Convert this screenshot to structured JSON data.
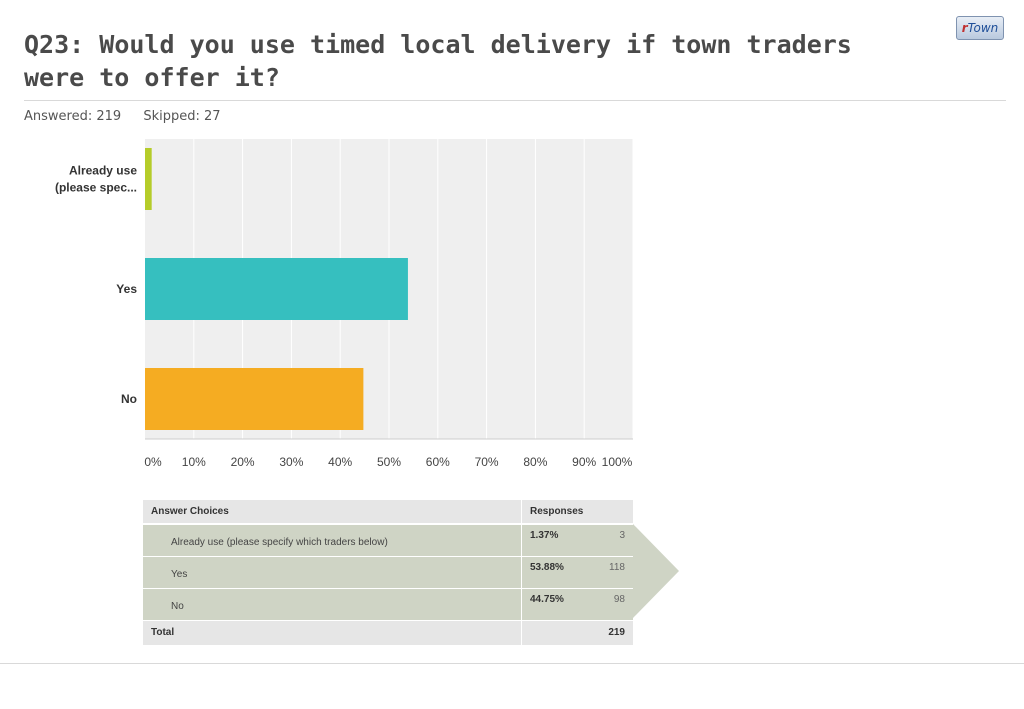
{
  "question": {
    "number": "Q23:",
    "text": "Would you use timed local delivery if town traders were to offer it?",
    "answered": "Answered: 219",
    "skipped": "Skipped: 27"
  },
  "logo": {
    "r": "r",
    "rest": "Town"
  },
  "chart_data": {
    "type": "bar",
    "orientation": "horizontal",
    "categories": [
      "Already use (please spec...",
      "Yes",
      "No"
    ],
    "values": [
      1.37,
      53.88,
      44.75
    ],
    "colors": [
      "#b5cc2a",
      "#36bfbf",
      "#f5ac22"
    ],
    "xlim": [
      0,
      100
    ],
    "xticks": [
      "0%",
      "10%",
      "20%",
      "30%",
      "40%",
      "50%",
      "60%",
      "70%",
      "80%",
      "90%",
      "100%"
    ],
    "grid": true
  },
  "table": {
    "header": {
      "choices": "Answer Choices",
      "responses": "Responses"
    },
    "rows": [
      {
        "label": "Already use (please specify which traders below)",
        "pct": "1.37%",
        "count": "3"
      },
      {
        "label": "Yes",
        "pct": "53.88%",
        "count": "118"
      },
      {
        "label": "No",
        "pct": "44.75%",
        "count": "98"
      }
    ],
    "total": {
      "label": "Total",
      "count": "219"
    }
  }
}
